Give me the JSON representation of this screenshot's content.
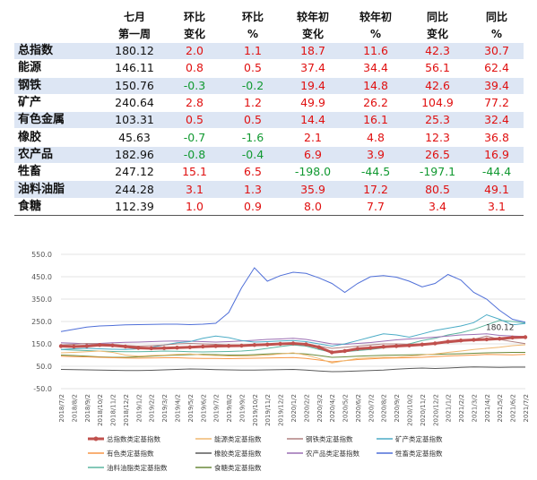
{
  "table": {
    "headers": [
      [
        "",
        ""
      ],
      [
        "七月",
        "第一周"
      ],
      [
        "环比",
        "变化"
      ],
      [
        "环比",
        "%"
      ],
      [
        "较年初",
        "变化"
      ],
      [
        "较年初",
        "%"
      ],
      [
        "同比",
        "变化"
      ],
      [
        "同比",
        "%"
      ]
    ],
    "rows": [
      {
        "name": "总指数",
        "values": [
          "180.12",
          "2.0",
          "1.1",
          "18.7",
          "11.6",
          "42.3",
          "30.7"
        ]
      },
      {
        "name": "能源",
        "values": [
          "146.11",
          "0.8",
          "0.5",
          "37.4",
          "34.4",
          "56.1",
          "62.4"
        ]
      },
      {
        "name": "钢铁",
        "values": [
          "150.76",
          "-0.3",
          "-0.2",
          "19.4",
          "14.8",
          "42.6",
          "39.4"
        ]
      },
      {
        "name": "矿产",
        "values": [
          "240.64",
          "2.8",
          "1.2",
          "49.9",
          "26.2",
          "104.9",
          "77.2"
        ]
      },
      {
        "name": "有色金属",
        "values": [
          "103.31",
          "0.5",
          "0.5",
          "14.4",
          "16.1",
          "25.3",
          "32.4"
        ]
      },
      {
        "name": "橡胶",
        "values": [
          "45.63",
          "-0.7",
          "-1.6",
          "2.1",
          "4.8",
          "12.3",
          "36.8"
        ]
      },
      {
        "name": "农产品",
        "values": [
          "182.96",
          "-0.8",
          "-0.4",
          "6.9",
          "3.9",
          "26.5",
          "16.9"
        ]
      },
      {
        "name": "牲畜",
        "values": [
          "247.12",
          "15.1",
          "6.5",
          "-198.0",
          "-44.5",
          "-197.1",
          "-44.4"
        ]
      },
      {
        "name": "油料油脂",
        "values": [
          "244.28",
          "3.1",
          "1.3",
          "35.9",
          "17.2",
          "80.5",
          "49.1"
        ]
      },
      {
        "name": "食糖",
        "values": [
          "112.39",
          "1.0",
          "0.9",
          "8.0",
          "7.7",
          "3.4",
          "3.1"
        ]
      }
    ]
  },
  "chart_data": {
    "type": "line",
    "x": [
      "2018/7/2",
      "2018/8/2",
      "2018/9/2",
      "2018/10/2",
      "2018/11/2",
      "2018/12/2",
      "2019/1/2",
      "2019/2/2",
      "2019/3/2",
      "2019/4/2",
      "2019/5/2",
      "2019/6/2",
      "2019/7/2",
      "2019/8/2",
      "2019/9/2",
      "2019/10/2",
      "2019/11/2",
      "2019/12/2",
      "2020/1/2",
      "2020/2/2",
      "2020/3/2",
      "2020/4/2",
      "2020/5/2",
      "2020/6/2",
      "2020/7/2",
      "2020/8/2",
      "2020/9/2",
      "2020/10/2",
      "2020/11/2",
      "2020/12/2",
      "2021/1/2",
      "2021/2/2",
      "2021/3/2",
      "2021/4/2",
      "2021/5/2",
      "2021/6/2",
      "2021/7/2"
    ],
    "ylim": [
      -50,
      550
    ],
    "yticks": [
      "550.0",
      "450.0",
      "350.0",
      "250.0",
      "150.0",
      "50.0",
      "-50.0"
    ],
    "annotation": "180.12",
    "series": [
      {
        "name": "总指数类定基指数",
        "color": "#c0504d",
        "values": [
          140,
          138,
          140,
          145,
          143,
          138,
          132,
          130,
          131,
          133,
          135,
          138,
          140,
          141,
          142,
          145,
          147,
          150,
          152,
          148,
          135,
          112,
          118,
          128,
          132,
          137,
          140,
          143,
          147,
          152,
          160,
          165,
          168,
          170,
          173,
          178,
          180
        ]
      },
      {
        "name": "能源类定基指数",
        "color": "#f0b870",
        "values": [
          110,
          112,
          115,
          118,
          112,
          100,
          95,
          98,
          100,
          103,
          105,
          100,
          98,
          96,
          95,
          97,
          100,
          105,
          110,
          100,
          85,
          65,
          75,
          85,
          88,
          90,
          90,
          95,
          100,
          105,
          112,
          118,
          125,
          130,
          135,
          142,
          146
        ]
      },
      {
        "name": "钢铁类定基指数",
        "color": "#b08080",
        "values": [
          145,
          148,
          152,
          150,
          148,
          143,
          140,
          142,
          145,
          150,
          152,
          150,
          148,
          145,
          143,
          145,
          148,
          150,
          152,
          150,
          140,
          130,
          135,
          140,
          145,
          150,
          150,
          148,
          150,
          152,
          155,
          160,
          170,
          185,
          170,
          160,
          151
        ]
      },
      {
        "name": "矿产类定基指数",
        "color": "#4bacc6",
        "values": [
          125,
          128,
          130,
          128,
          126,
          125,
          128,
          135,
          145,
          155,
          160,
          175,
          185,
          178,
          165,
          158,
          160,
          163,
          165,
          160,
          150,
          140,
          150,
          165,
          180,
          195,
          190,
          180,
          195,
          210,
          220,
          230,
          245,
          280,
          260,
          235,
          241
        ]
      },
      {
        "name": "有色类定基指数",
        "color": "#f79646",
        "values": [
          95,
          93,
          92,
          90,
          88,
          87,
          86,
          87,
          88,
          88,
          86,
          85,
          85,
          84,
          85,
          86,
          87,
          88,
          89,
          85,
          78,
          70,
          75,
          80,
          83,
          86,
          87,
          88,
          90,
          93,
          96,
          98,
          100,
          103,
          102,
          101,
          103
        ]
      },
      {
        "name": "橡胶类定基指数",
        "color": "#5a5a5a",
        "values": [
          36,
          35,
          34,
          33,
          32,
          31,
          31,
          32,
          34,
          36,
          38,
          37,
          35,
          34,
          33,
          33,
          34,
          35,
          36,
          33,
          29,
          26,
          27,
          29,
          31,
          33,
          37,
          40,
          42,
          40,
          42,
          45,
          47,
          46,
          45,
          46,
          46
        ]
      },
      {
        "name": "农产品类定基指数",
        "color": "#9b6fb3",
        "values": [
          155,
          153,
          150,
          152,
          155,
          157,
          158,
          160,
          162,
          163,
          162,
          160,
          158,
          160,
          163,
          166,
          170,
          172,
          175,
          170,
          160,
          150,
          148,
          152,
          156,
          162,
          168,
          172,
          176,
          180,
          185,
          190,
          192,
          195,
          188,
          185,
          183
        ]
      },
      {
        "name": "牲畜类定基指数",
        "color": "#4f6fd8",
        "values": [
          205,
          215,
          225,
          230,
          232,
          235,
          236,
          237,
          238,
          238,
          236,
          238,
          242,
          290,
          400,
          490,
          430,
          455,
          470,
          465,
          445,
          420,
          380,
          420,
          450,
          455,
          448,
          430,
          405,
          420,
          460,
          435,
          380,
          350,
          300,
          260,
          247
        ]
      },
      {
        "name": "油料油脂类定基指数",
        "color": "#5bb5a0",
        "values": [
          125,
          122,
          120,
          118,
          116,
          115,
          115,
          116,
          118,
          117,
          115,
          114,
          115,
          116,
          118,
          122,
          130,
          138,
          145,
          140,
          125,
          112,
          115,
          120,
          125,
          132,
          140,
          150,
          165,
          175,
          190,
          200,
          215,
          235,
          255,
          250,
          244
        ]
      },
      {
        "name": "食糖类定基指数",
        "color": "#6a8a3a",
        "values": [
          100,
          98,
          95,
          92,
          90,
          90,
          92,
          95,
          98,
          100,
          102,
          103,
          102,
          100,
          100,
          102,
          105,
          107,
          108,
          105,
          98,
          90,
          92,
          95,
          97,
          99,
          100,
          101,
          102,
          103,
          105,
          106,
          108,
          110,
          111,
          112,
          112
        ]
      }
    ]
  }
}
